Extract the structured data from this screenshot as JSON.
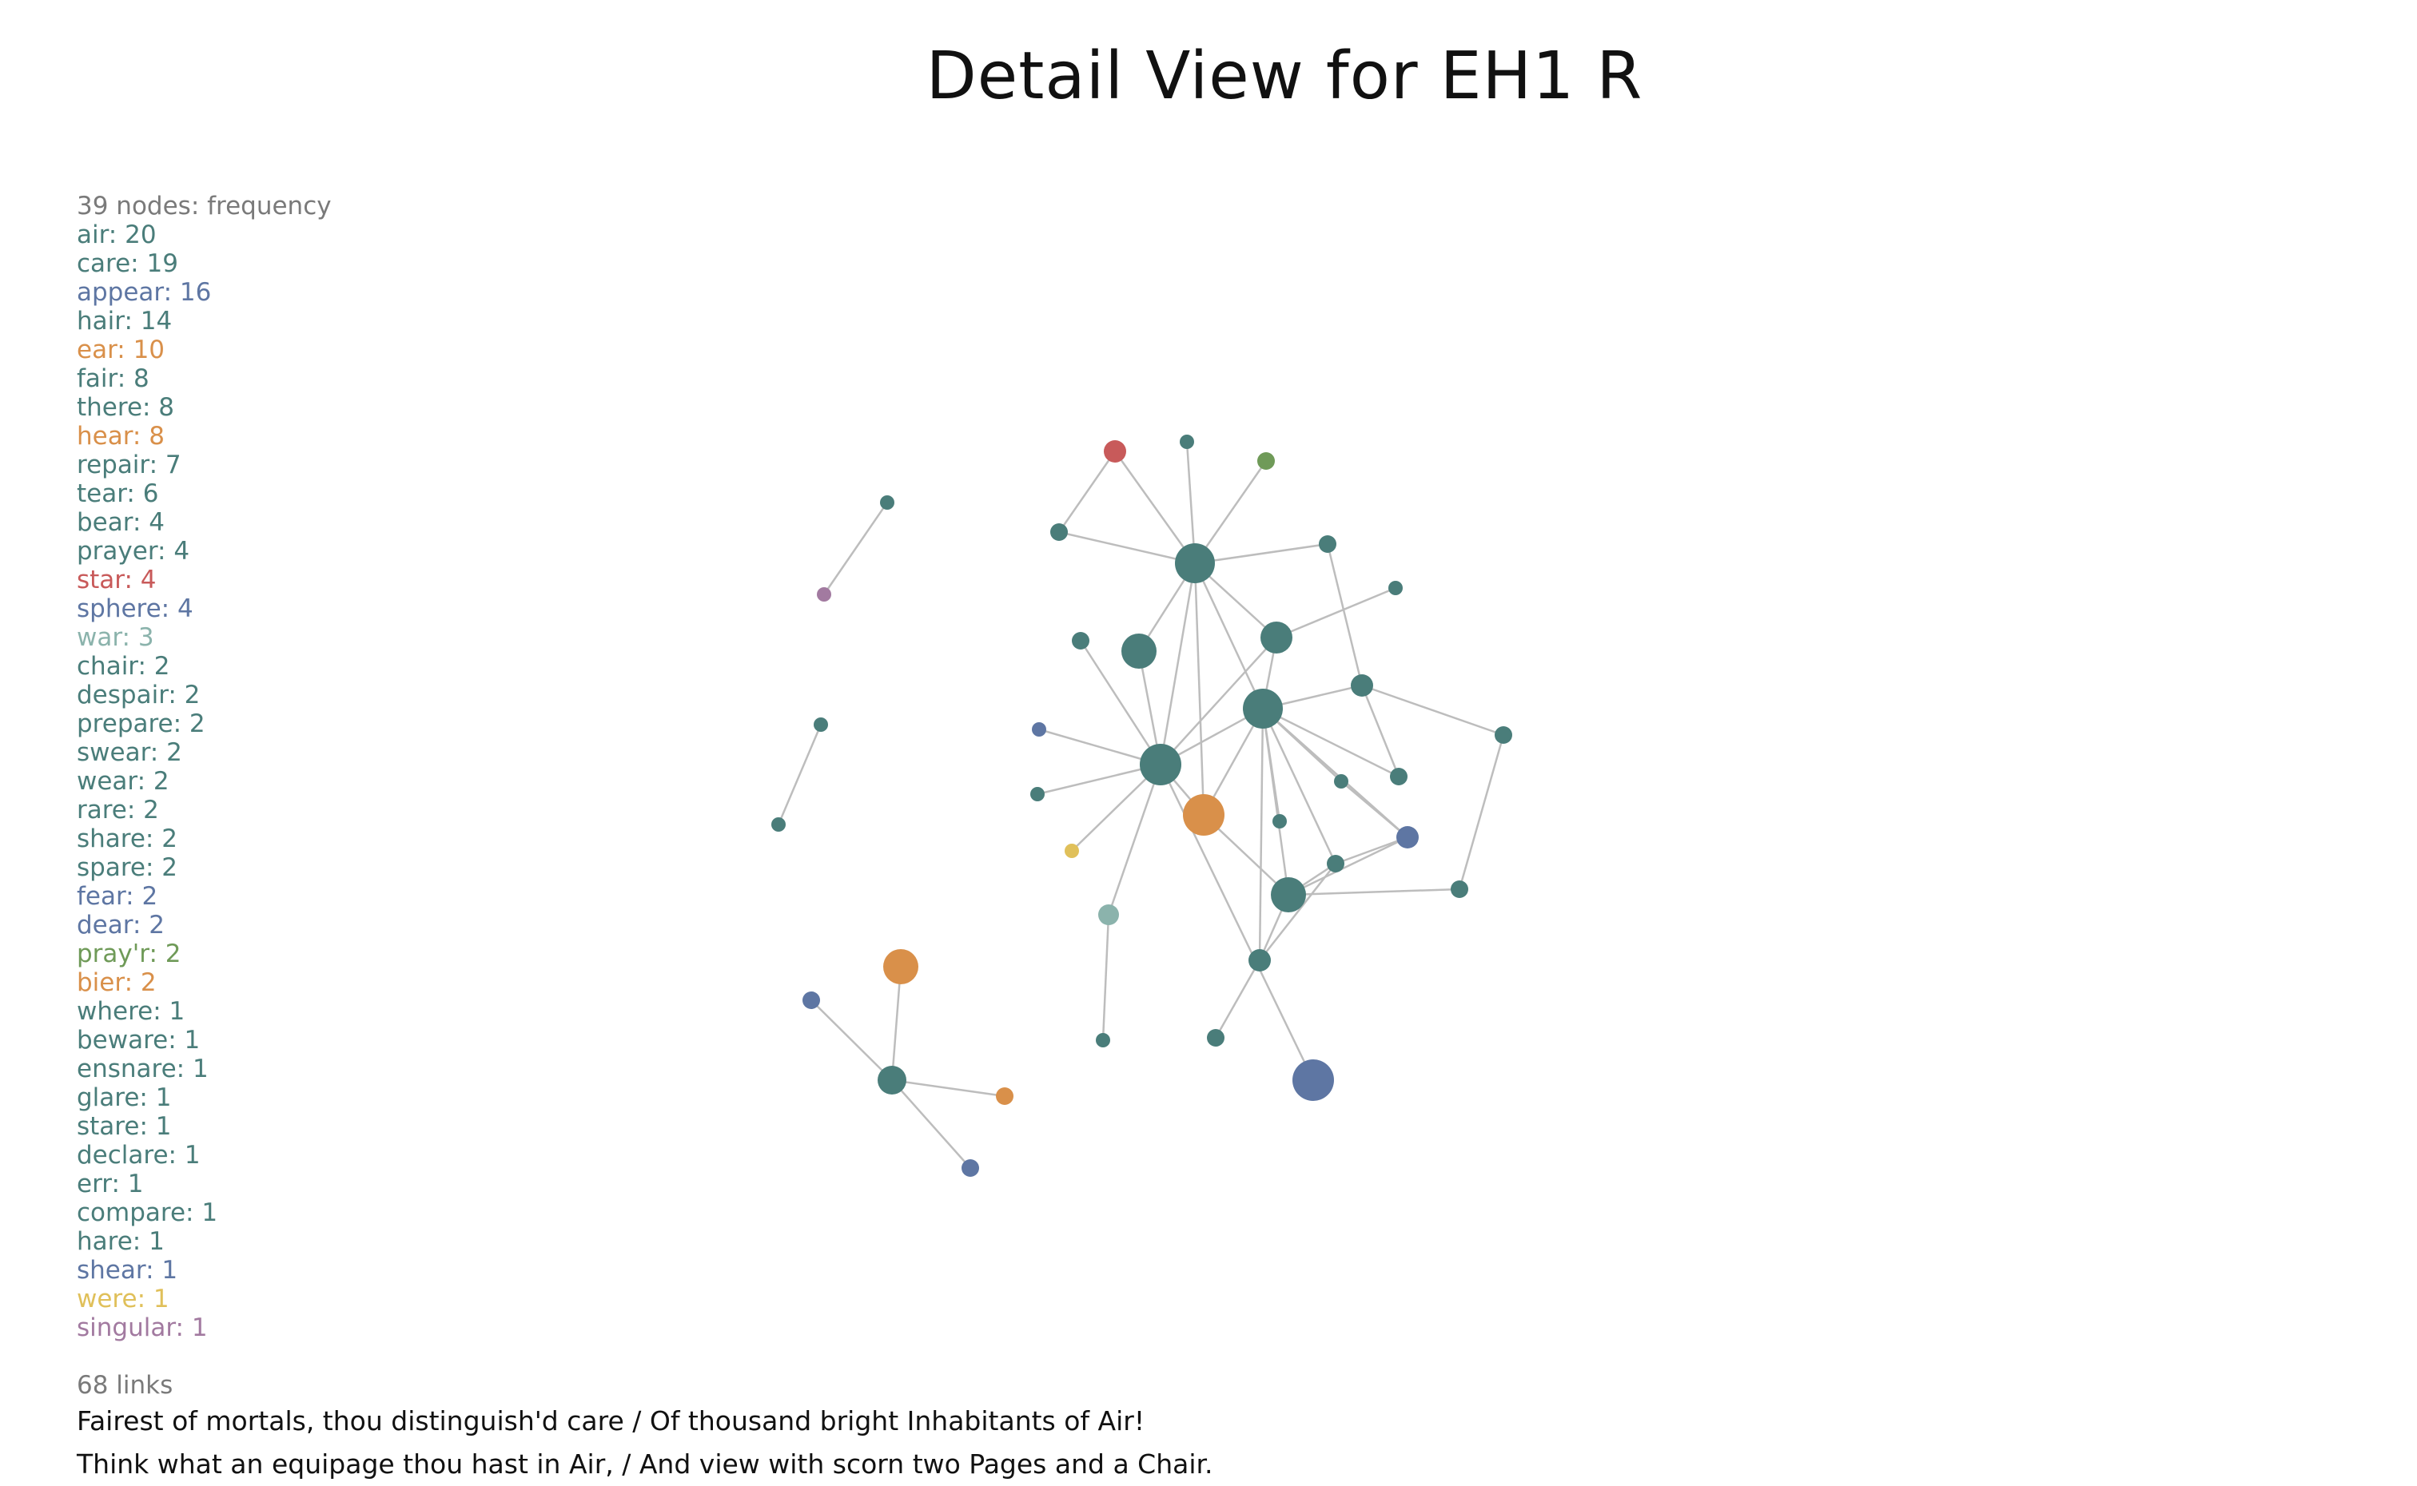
{
  "title": "Detail View for EH1 R",
  "legend": {
    "header": "39 nodes: frequency",
    "items": [
      {
        "label": "air: 20",
        "color": "#4a7d7a"
      },
      {
        "label": "care: 19",
        "color": "#4a7d7a"
      },
      {
        "label": "appear: 16",
        "color": "#5e76a3"
      },
      {
        "label": "hair: 14",
        "color": "#4a7d7a"
      },
      {
        "label": "ear: 10",
        "color": "#d9904a"
      },
      {
        "label": "fair: 8",
        "color": "#4a7d7a"
      },
      {
        "label": "there: 8",
        "color": "#4a7d7a"
      },
      {
        "label": "hear: 8",
        "color": "#d9904a"
      },
      {
        "label": "repair: 7",
        "color": "#4a7d7a"
      },
      {
        "label": "tear: 6",
        "color": "#4a7d7a"
      },
      {
        "label": "bear: 4",
        "color": "#4a7d7a"
      },
      {
        "label": "prayer: 4",
        "color": "#4a7d7a"
      },
      {
        "label": "star: 4",
        "color": "#c85a5a"
      },
      {
        "label": "sphere: 4",
        "color": "#5e76a3"
      },
      {
        "label": "war: 3",
        "color": "#8bb3ac"
      },
      {
        "label": "chair: 2",
        "color": "#4a7d7a"
      },
      {
        "label": "despair: 2",
        "color": "#4a7d7a"
      },
      {
        "label": "prepare: 2",
        "color": "#4a7d7a"
      },
      {
        "label": "swear: 2",
        "color": "#4a7d7a"
      },
      {
        "label": "wear: 2",
        "color": "#4a7d7a"
      },
      {
        "label": "rare: 2",
        "color": "#4a7d7a"
      },
      {
        "label": "share: 2",
        "color": "#4a7d7a"
      },
      {
        "label": "spare: 2",
        "color": "#4a7d7a"
      },
      {
        "label": "fear: 2",
        "color": "#5e76a3"
      },
      {
        "label": "dear: 2",
        "color": "#5e76a3"
      },
      {
        "label": "pray'r: 2",
        "color": "#6f9a58"
      },
      {
        "label": "bier: 2",
        "color": "#d9904a"
      },
      {
        "label": "where: 1",
        "color": "#4a7d7a"
      },
      {
        "label": "beware: 1",
        "color": "#4a7d7a"
      },
      {
        "label": "ensnare: 1",
        "color": "#4a7d7a"
      },
      {
        "label": "glare: 1",
        "color": "#4a7d7a"
      },
      {
        "label": "stare: 1",
        "color": "#4a7d7a"
      },
      {
        "label": "declare: 1",
        "color": "#4a7d7a"
      },
      {
        "label": "err: 1",
        "color": "#4a7d7a"
      },
      {
        "label": "compare: 1",
        "color": "#4a7d7a"
      },
      {
        "label": "hare: 1",
        "color": "#4a7d7a"
      },
      {
        "label": "shear: 1",
        "color": "#5e76a3"
      },
      {
        "label": "were: 1",
        "color": "#e0c05a"
      },
      {
        "label": "singular: 1",
        "color": "#a27aa0"
      }
    ]
  },
  "links_count": "68 links",
  "quotes": [
    "Fairest of mortals, thou distinguish'd care / Of thousand bright Inhabitants of Air!",
    "Think what an equipage thou hast in Air, / And view with scorn two Pages and a Chair."
  ],
  "colors": {
    "teal": "#4a7d7a",
    "blue": "#5e76a3",
    "orange": "#d9904a",
    "red": "#c85a5a",
    "green": "#6f9a58",
    "sage": "#8bb3ac",
    "yellow": "#e0c05a",
    "mauve": "#a27aa0",
    "link": "#bdbdbd"
  }
}
